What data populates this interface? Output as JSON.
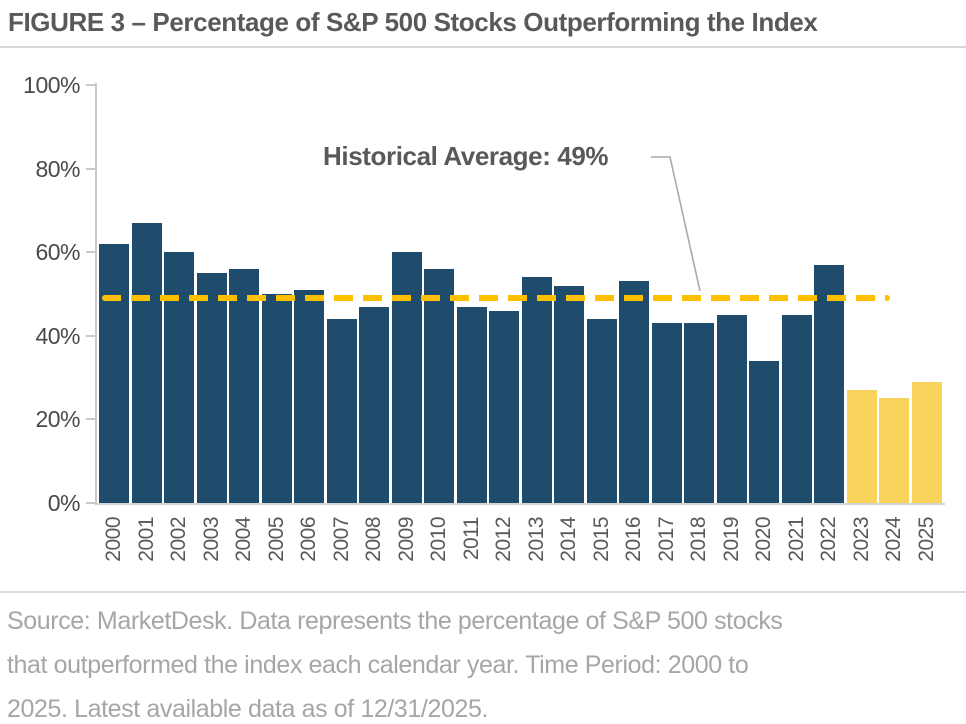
{
  "title": "FIGURE 3 – Percentage of S&P 500 Stocks Outperforming the Index",
  "chart_data": {
    "type": "bar",
    "title": "FIGURE 3 – Percentage of S&P 500 Stocks Outperforming the Index",
    "categories": [
      "2000",
      "2001",
      "2002",
      "2003",
      "2004",
      "2005",
      "2006",
      "2007",
      "2008",
      "2009",
      "2010",
      "2011",
      "2012",
      "2013",
      "2014",
      "2015",
      "2016",
      "2017",
      "2018",
      "2019",
      "2020",
      "2021",
      "2022",
      "2023",
      "2024",
      "2025"
    ],
    "values": [
      62,
      67,
      60,
      55,
      56,
      50,
      51,
      44,
      47,
      60,
      56,
      47,
      46,
      54,
      52,
      44,
      53,
      43,
      43,
      45,
      34,
      45,
      57,
      27,
      25,
      29
    ],
    "highlight_years": [
      "2023",
      "2024",
      "2025"
    ],
    "bar_value_labels": {
      "2023": "27%",
      "2024": "25%",
      "2025": "29%"
    },
    "xlabel": "",
    "ylabel": "",
    "ylim": [
      0,
      100
    ],
    "ytick_values": [
      0,
      20,
      40,
      60,
      80,
      100
    ],
    "yticks": [
      "0%",
      "20%",
      "40%",
      "60%",
      "80%",
      "100%"
    ],
    "grid": "off",
    "legend": "none",
    "average_line": {
      "value": 49,
      "label": "Historical Average: 49%"
    },
    "colors": {
      "bar_navy": "#1F4C6D",
      "bar_gold": "#FAD35C",
      "dash_gold": "#FFC000",
      "axis_gray": "#C9C9C9",
      "text_gray": "#595959"
    }
  },
  "footer": {
    "lines": [
      "Source: MarketDesk. Data represents the percentage of S&P 500 stocks",
      "that outperformed the index each calendar year. Time Period: 2000 to",
      "2025. Latest available data as of 12/31/2025."
    ]
  }
}
